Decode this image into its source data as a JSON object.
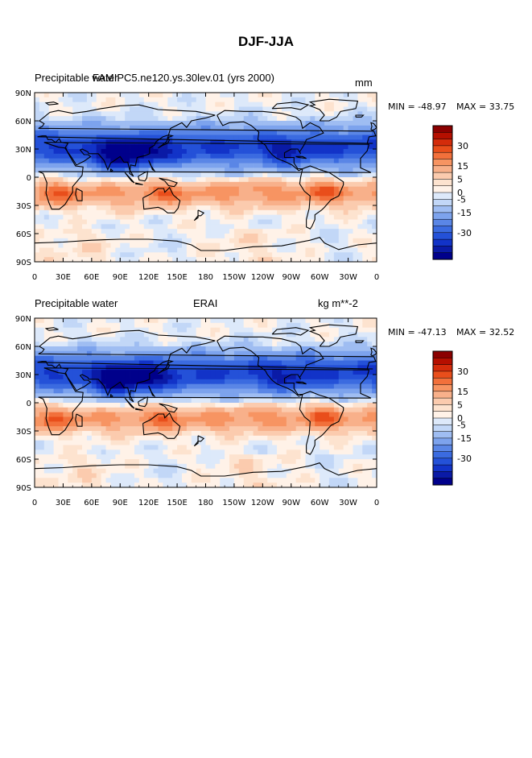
{
  "figure_title": "DJF-JJA",
  "chart_data": [
    {
      "type": "heatmap",
      "panel": "top",
      "left_title": "Precipitable water",
      "center_title": "FAMIPC5.ne120.ys.30lev.01 (yrs 2000)",
      "right_title": "mm",
      "min_label": "MIN = -48.97",
      "max_label": "MAX =  33.75",
      "min": -48.97,
      "max": 33.75,
      "x_ticks": [
        "0",
        "30E",
        "60E",
        "90E",
        "120E",
        "150E",
        "180",
        "150W",
        "120W",
        "90W",
        "60W",
        "30W",
        "0"
      ],
      "y_ticks": [
        "90N",
        "60N",
        "30N",
        "0",
        "30S",
        "60S",
        "90S"
      ],
      "colorbar_labels": [
        "30",
        "15",
        "5",
        "0",
        "-5",
        "-15",
        "-30"
      ],
      "colorbar_levels": [
        40,
        35,
        30,
        25,
        20,
        15,
        10,
        5,
        2.5,
        0,
        -2.5,
        -5,
        -10,
        -15,
        -20,
        -25,
        -30,
        -35,
        -40
      ],
      "colors": [
        "#8b0000",
        "#b50f00",
        "#d42c0b",
        "#e94e1b",
        "#f2703b",
        "#f79462",
        "#f8b08a",
        "#fbcbae",
        "#fde3cf",
        "#fff2e8",
        "#dde9fa",
        "#c2d7f7",
        "#9fbdf2",
        "#7da3ed",
        "#5a86e6",
        "#3b6be0",
        "#2451d8",
        "#1233c8",
        "#0a1aa6",
        "#00008b"
      ]
    },
    {
      "type": "heatmap",
      "panel": "bottom",
      "left_title": "Precipitable water",
      "center_title": "ERAI",
      "right_title": "kg m**-2",
      "min_label": "MIN = -47.13",
      "max_label": "MAX =  32.52",
      "min": -47.13,
      "max": 32.52,
      "x_ticks": [
        "0",
        "30E",
        "60E",
        "90E",
        "120E",
        "150E",
        "180",
        "150W",
        "120W",
        "90W",
        "60W",
        "30W",
        "0"
      ],
      "y_ticks": [
        "90N",
        "60N",
        "30N",
        "0",
        "30S",
        "60S",
        "90S"
      ],
      "colorbar_labels": [
        "30",
        "15",
        "5",
        "0",
        "-5",
        "-15",
        "-30"
      ],
      "colorbar_levels": [
        40,
        35,
        30,
        25,
        20,
        15,
        10,
        5,
        2.5,
        0,
        -2.5,
        -5,
        -10,
        -15,
        -20,
        -25,
        -30,
        -35,
        -40
      ],
      "colors": [
        "#8b0000",
        "#b50f00",
        "#d42c0b",
        "#e94e1b",
        "#f2703b",
        "#f79462",
        "#f8b08a",
        "#fbcbae",
        "#fde3cf",
        "#fff2e8",
        "#dde9fa",
        "#c2d7f7",
        "#9fbdf2",
        "#7da3ed",
        "#5a86e6",
        "#3b6be0",
        "#2451d8",
        "#1233c8",
        "#0a1aa6",
        "#00008b"
      ]
    }
  ]
}
